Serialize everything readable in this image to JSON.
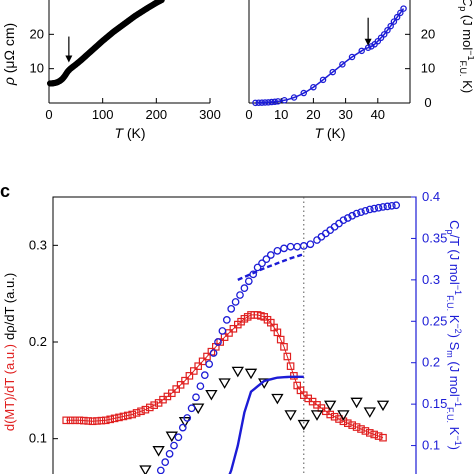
{
  "panel_c_label": "c",
  "chart_data": [
    {
      "type": "line",
      "panel": "a",
      "xlabel_var": "T",
      "xlabel_unit": " (K)",
      "ylabel_var": "ρ",
      "ylabel_unit": " (μΩ cm)",
      "xlim": [
        0,
        300
      ],
      "ylim": [
        0,
        30
      ],
      "xticks": [
        0,
        100,
        200,
        300
      ],
      "yticks": [
        10,
        20
      ],
      "series": [
        {
          "color": "#000000",
          "marker": "filled-circle",
          "x": [
            2,
            5,
            10,
            15,
            20,
            25,
            30,
            35,
            40,
            50,
            60,
            80,
            100,
            120,
            140,
            160,
            180,
            200,
            210
          ],
          "y": [
            5.7,
            5.7,
            5.8,
            6.0,
            6.4,
            7.0,
            8.0,
            9.2,
            10.0,
            11.2,
            12.5,
            15.3,
            18.1,
            20.7,
            23.0,
            25.3,
            27.3,
            29.2,
            30.0
          ]
        }
      ],
      "annotations": [
        {
          "type": "arrow",
          "x": 37
        }
      ]
    },
    {
      "type": "scatter",
      "panel": "b",
      "xlabel_var": "T",
      "xlabel_unit": " (K)",
      "ylabel_var": "C",
      "ylabel_sub": "p",
      "ylabel_unit": " (J mol",
      "ylabel_unit_sup": "−1",
      "ylabel_unit_sub": "F.U.",
      "ylabel_unit_tail": " K)",
      "xlim": [
        0,
        50
      ],
      "ylim": [
        0,
        30
      ],
      "xticks": [
        0,
        10,
        20,
        30,
        40
      ],
      "yticks": [
        0,
        10,
        20
      ],
      "series": [
        {
          "color": "#1c1cd6",
          "marker": "open-circle",
          "x": [
            2,
            4,
            6,
            8,
            10,
            12,
            14,
            16,
            18,
            20,
            22,
            24,
            26,
            28,
            30,
            32,
            34,
            35,
            36,
            37,
            38,
            39,
            40,
            42,
            44,
            46,
            48
          ],
          "y": [
            0.05,
            0.1,
            0.2,
            0.35,
            0.6,
            1.0,
            1.6,
            2.4,
            3.4,
            4.6,
            6.0,
            7.5,
            9.0,
            10.5,
            12.0,
            13.4,
            14.6,
            15.2,
            15.8,
            16.1,
            16.5,
            17.1,
            18.0,
            20.0,
            22.4,
            25.0,
            27.5
          ]
        }
      ],
      "annotations": [
        {
          "type": "arrow",
          "x": 37
        }
      ]
    },
    {
      "type": "scatter",
      "panel": "c",
      "xlim": [
        0,
        300
      ],
      "ylim_left": [
        0.05,
        0.35
      ],
      "ylim_right": [
        0.05,
        0.4
      ],
      "yticks_left": [
        0.1,
        0.2,
        0.3
      ],
      "yticks_right": [
        0.1,
        0.15,
        0.2,
        0.25,
        0.3,
        0.35,
        0.4
      ],
      "ylabel_left_parts": [
        "d(MT)/dT (a.u.)",
        "dρ/dT (a.u.)"
      ],
      "ylabel_right_parts": [
        "C",
        "p",
        "/T (J mol",
        "−1",
        "F.U.",
        " K",
        "−2",
        ") S",
        "m",
        " (J mol",
        "−1",
        "F.U.",
        " K",
        "−1",
        ")"
      ],
      "vline_x": 38,
      "series": [
        {
          "axis": "left",
          "color": "#e02020",
          "marker": "open-square",
          "x": [
            2,
            4,
            6,
            8,
            10,
            12,
            14,
            16,
            18,
            20,
            22,
            24,
            26,
            28,
            29,
            30,
            31,
            32,
            33,
            34,
            35,
            36,
            37,
            38,
            40,
            42,
            44,
            46,
            48,
            50
          ],
          "y": [
            0.119,
            0.119,
            0.118,
            0.119,
            0.122,
            0.125,
            0.13,
            0.137,
            0.147,
            0.16,
            0.175,
            0.19,
            0.205,
            0.218,
            0.224,
            0.228,
            0.228,
            0.226,
            0.22,
            0.21,
            0.195,
            0.175,
            0.155,
            0.145,
            0.135,
            0.125,
            0.118,
            0.112,
            0.106,
            0.101
          ]
        },
        {
          "axis": "left",
          "color": "#000000",
          "marker": "open-triangle-down",
          "x": [
            14,
            16,
            18,
            20,
            22,
            24,
            26,
            28,
            30,
            32,
            34,
            36,
            38,
            40,
            42,
            44,
            46,
            48,
            50
          ],
          "y": [
            0.068,
            0.088,
            0.103,
            0.118,
            0.132,
            0.146,
            0.158,
            0.17,
            0.168,
            0.158,
            0.142,
            0.125,
            0.115,
            0.125,
            0.135,
            0.125,
            0.138,
            0.128,
            0.135
          ]
        },
        {
          "axis": "right",
          "color": "#1c1cd6",
          "marker": "open-circle",
          "x": [
            15,
            17,
            19,
            21,
            23,
            25,
            27,
            29,
            31,
            33,
            34,
            35,
            36,
            37,
            38,
            39,
            40,
            42,
            44,
            46,
            48,
            50,
            52
          ],
          "y": [
            0.05,
            0.08,
            0.11,
            0.145,
            0.185,
            0.225,
            0.265,
            0.29,
            0.315,
            0.33,
            0.335,
            0.338,
            0.34,
            0.34,
            0.341,
            0.343,
            0.348,
            0.36,
            0.372,
            0.38,
            0.385,
            0.388,
            0.39
          ]
        },
        {
          "axis": "right",
          "color": "#1c1cd6",
          "marker": "dashed-line",
          "x": [
            28,
            30,
            32,
            34,
            36,
            38
          ],
          "y": [
            0.3,
            0.307,
            0.314,
            0.32,
            0.326,
            0.331
          ]
        },
        {
          "axis": "right",
          "color": "#1c1cd6",
          "marker": "solid-line",
          "x": [
            26,
            27,
            28,
            29,
            30,
            32,
            34,
            36,
            38
          ],
          "y": [
            0.05,
            0.07,
            0.1,
            0.14,
            0.165,
            0.178,
            0.182,
            0.183,
            0.183
          ]
        }
      ]
    }
  ]
}
